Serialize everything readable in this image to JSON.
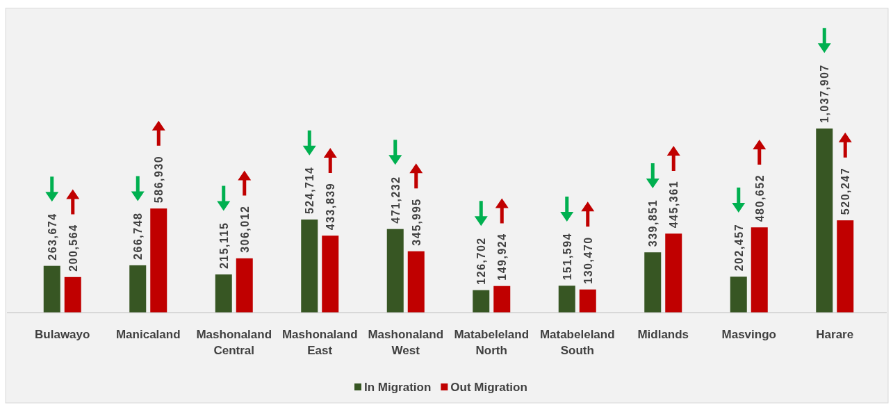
{
  "chart_data": {
    "type": "bar",
    "categories": [
      "Bulawayo",
      "Manicaland",
      "Mashonaland Central",
      "Mashonaland East",
      "Mashonaland West",
      "Matabeleland North",
      "Matabeleland South",
      "Midlands",
      "Masvingo",
      "Harare"
    ],
    "series": [
      {
        "name": "In Migration",
        "color": "#375623",
        "values": [
          263674,
          266748,
          215115,
          524714,
          471232,
          126702,
          151594,
          339851,
          202457,
          1037907
        ],
        "value_labels": [
          "263,674",
          "266,748",
          "215,115",
          "524,714",
          "471,232",
          "126,702",
          "151,594",
          "339,851",
          "202,457",
          "1,037,907"
        ]
      },
      {
        "name": "Out Migration",
        "color": "#c00000",
        "values": [
          200564,
          586930,
          306012,
          433839,
          345995,
          149924,
          130470,
          445361,
          480652,
          520247
        ],
        "value_labels": [
          "200,564",
          "586,930",
          "306,012",
          "433,839",
          "345,995",
          "149,924",
          "130,470",
          "445,361",
          "480,652",
          "520,247"
        ]
      }
    ],
    "legend": "bottom"
  }
}
